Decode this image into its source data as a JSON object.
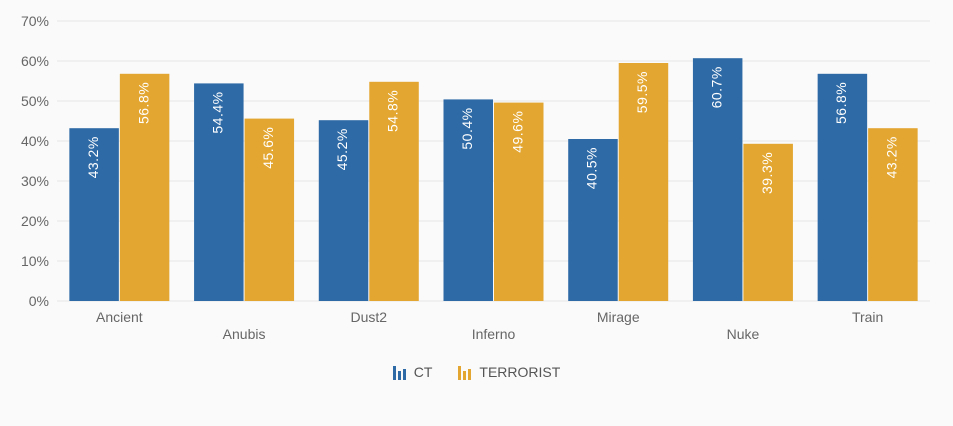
{
  "chart_data": {
    "type": "bar",
    "categories": [
      "Ancient",
      "Anubis",
      "Dust2",
      "Inferno",
      "Mirage",
      "Nuke",
      "Train"
    ],
    "series": [
      {
        "name": "CT",
        "color": "#2e6aa6",
        "values": [
          43.2,
          54.4,
          45.2,
          50.4,
          40.5,
          60.7,
          56.8
        ],
        "labels": [
          "43.2%",
          "54.4%",
          "45.2%",
          "50.4%",
          "40.5%",
          "60.7%",
          "56.8%"
        ]
      },
      {
        "name": "TERRORIST",
        "color": "#e3a630",
        "values": [
          56.8,
          45.6,
          54.8,
          49.6,
          59.5,
          39.3,
          43.2
        ],
        "labels": [
          "56.8%",
          "45.6%",
          "54.8%",
          "49.6%",
          "59.5%",
          "39.3%",
          "43.2%"
        ]
      }
    ],
    "ylim": [
      0,
      70
    ],
    "yticks": [
      "0%",
      "10%",
      "20%",
      "30%",
      "40%",
      "50%",
      "60%",
      "70%"
    ],
    "grid": true,
    "legend_position": "bottom-center",
    "title": "",
    "xlabel": "",
    "ylabel": ""
  },
  "legend": {
    "ct_label": "CT",
    "t_label": "TERRORIST"
  },
  "colors": {
    "ct": "#2e6aa6",
    "t": "#e3a630",
    "grid": "#e6e6e6",
    "axis_text": "#666666"
  }
}
